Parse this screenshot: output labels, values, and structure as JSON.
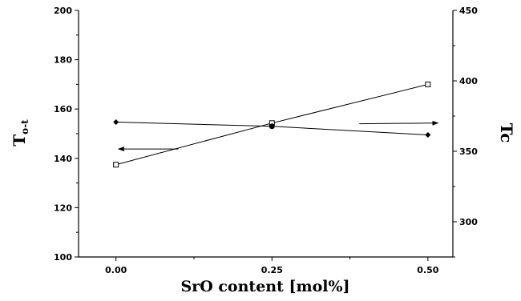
{
  "chart_data": {
    "type": "scatter",
    "xlabel": "SrO content [mol%]",
    "ylabel_left": "T",
    "ylabel_left_sub": "o-t",
    "ylabel_right": "Tc",
    "xlim": [
      -0.06,
      0.54
    ],
    "ylim_left": [
      100,
      200
    ],
    "ylim_right": [
      275,
      450
    ],
    "x_ticks": [
      0.0,
      0.25,
      0.5
    ],
    "x_tick_labels": [
      "0.00",
      "0.25",
      "0.50"
    ],
    "y_left_ticks": [
      100,
      120,
      140,
      160,
      180,
      200
    ],
    "y_left_tick_labels": [
      "100",
      "120",
      "140",
      "160",
      "180",
      "200"
    ],
    "y_right_ticks": [
      300,
      350,
      400,
      450
    ],
    "y_right_tick_labels": [
      "300",
      "350",
      "400",
      "450"
    ],
    "grid": false,
    "legend": "none",
    "series": [
      {
        "axis": "left",
        "marker": "filled-diamond",
        "x": [
          0.0,
          0.25,
          0.5
        ],
        "y": [
          154.7,
          153.0,
          149.5
        ],
        "arrow": "left"
      },
      {
        "axis": "right",
        "marker": "open-square",
        "x": [
          0.0,
          0.25,
          0.5
        ],
        "y": [
          340.5,
          370.0,
          397.5
        ],
        "arrow": "right"
      }
    ],
    "colors": {
      "line": "#000000"
    }
  }
}
